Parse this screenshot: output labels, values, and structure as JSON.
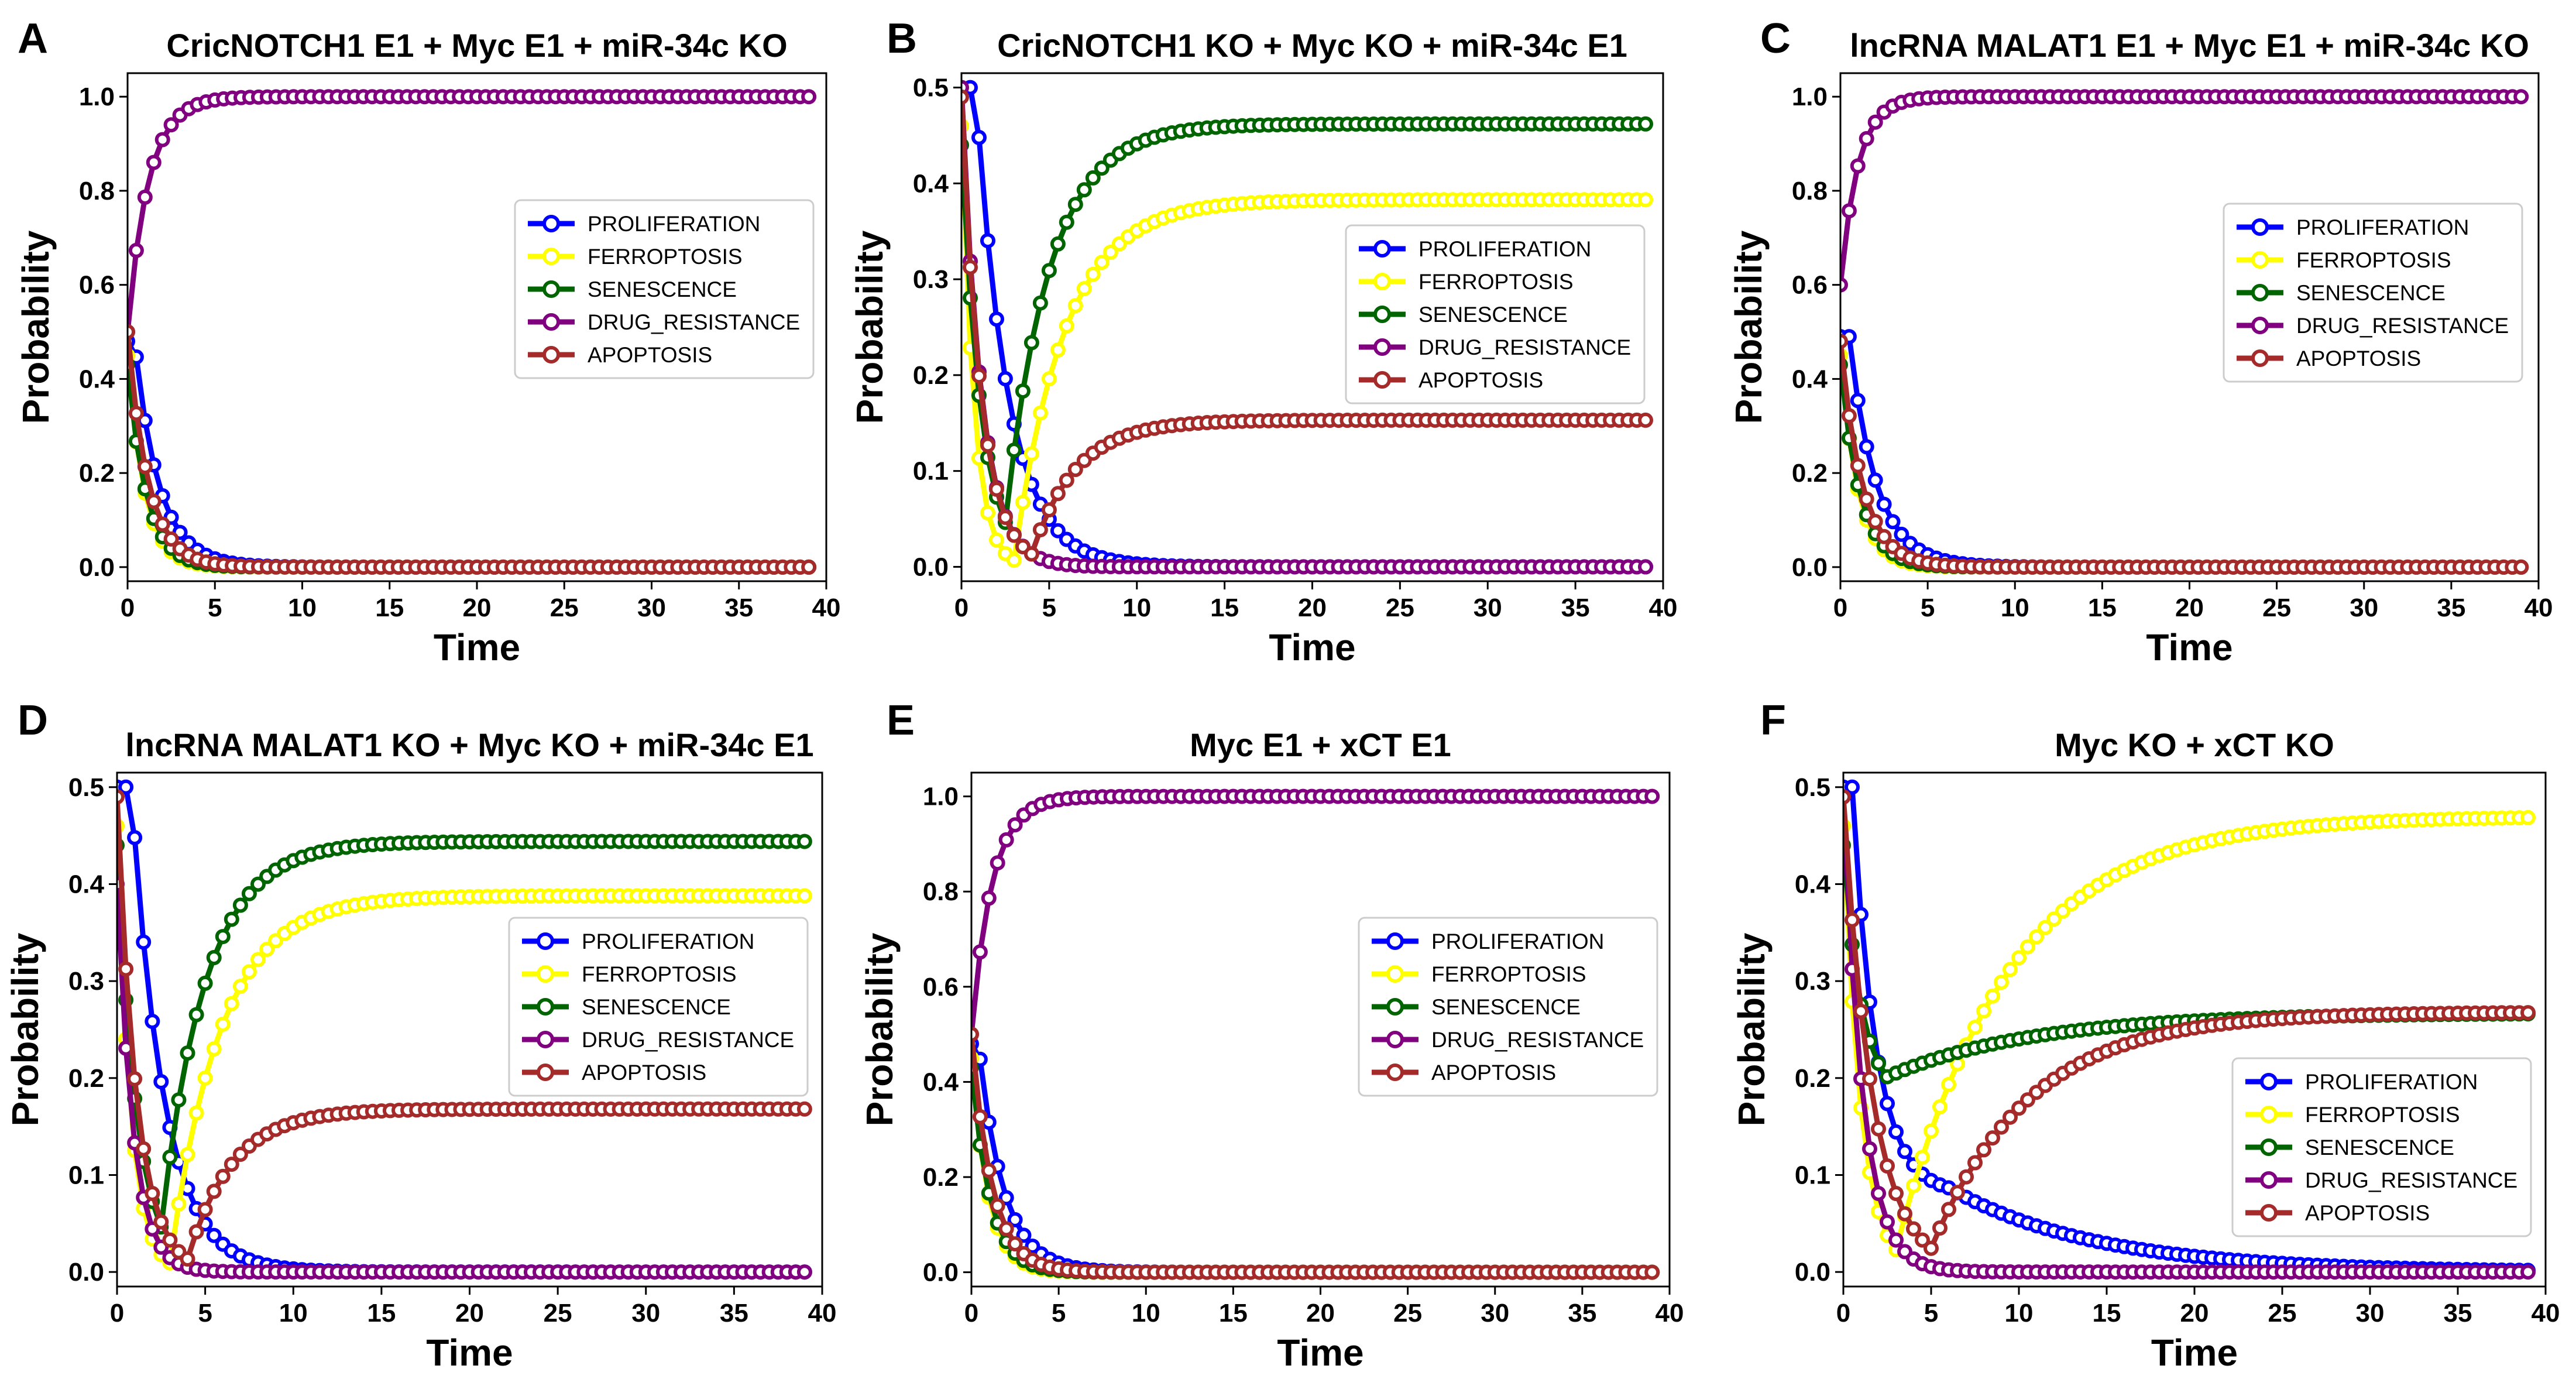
{
  "figure": {
    "x_values": "0..39 step 0.5"
  },
  "chart_data": [
    {
      "panel": "A",
      "type": "line",
      "title": "CricNOTCH1 E1 + Myc E1 + miR-34c KO",
      "xlabel": "Time",
      "ylabel": "Probability",
      "xlim": [
        0,
        40
      ],
      "ylim": [
        -0.03,
        1.05
      ],
      "xticks": [
        "0",
        "5",
        "10",
        "15",
        "20",
        "25",
        "30",
        "35",
        "40"
      ],
      "yticks": [
        "0.0",
        "0.2",
        "0.4",
        "0.6",
        "0.8",
        "1.0"
      ],
      "legend_position": "center-right",
      "series": [
        {
          "name": "PROLIFERATION",
          "color": "#0000ff",
          "start": 0.48,
          "phases": [
            {
              "to": 0.0,
              "rate": 0.72,
              "delay": 0.4
            }
          ]
        },
        {
          "name": "FERROPTOSIS",
          "color": "#ffff00",
          "start": 0.45,
          "phases": [
            {
              "to": 0.0,
              "rate": 1.05
            }
          ]
        },
        {
          "name": "SENESCENCE",
          "color": "#006400",
          "start": 0.43,
          "phases": [
            {
              "to": 0.0,
              "rate": 0.95
            }
          ]
        },
        {
          "name": "DRUG_RESISTANCE",
          "color": "#800080",
          "start": 0.5,
          "phases": [
            {
              "to": 1.0,
              "rate": 0.85
            }
          ]
        },
        {
          "name": "APOPTOSIS",
          "color": "#a52a2a",
          "start": 0.5,
          "phases": [
            {
              "to": 0.0,
              "rate": 0.85
            }
          ]
        }
      ]
    },
    {
      "panel": "B",
      "type": "line",
      "title": "CricNOTCH1 KO + Myc KO +  miR-34c E1",
      "xlabel": "Time",
      "ylabel": "Probability",
      "xlim": [
        0,
        40
      ],
      "ylim": [
        -0.015,
        0.515
      ],
      "xticks": [
        "0",
        "5",
        "10",
        "15",
        "20",
        "25",
        "30",
        "35",
        "40"
      ],
      "yticks": [
        "0.0",
        "0.1",
        "0.2",
        "0.3",
        "0.4",
        "0.5"
      ],
      "legend_position": "center-right",
      "series": [
        {
          "name": "PROLIFERATION",
          "color": "#0000ff",
          "start": 0.5,
          "phases": [
            {
              "to": 0.0,
              "rate": 0.55,
              "delay": 0.8
            }
          ]
        },
        {
          "name": "FERROPTOSIS",
          "color": "#ffff00",
          "start": 0.46,
          "phases": [
            {
              "to": 0.0,
              "rate": 1.4,
              "until": 3
            },
            {
              "to": 0.383,
              "rate": 0.35
            }
          ]
        },
        {
          "name": "SENESCENCE",
          "color": "#006400",
          "start": 0.44,
          "phases": [
            {
              "to": 0.0,
              "rate": 0.9,
              "until": 2.5
            },
            {
              "to": 0.462,
              "rate": 0.4
            }
          ]
        },
        {
          "name": "DRUG_RESISTANCE",
          "color": "#800080",
          "start": 0.5,
          "phases": [
            {
              "to": 0.0,
              "rate": 0.9
            }
          ]
        },
        {
          "name": "APOPTOSIS",
          "color": "#a52a2a",
          "start": 0.49,
          "phases": [
            {
              "to": 0.0,
              "rate": 0.9,
              "until": 4
            },
            {
              "to": 0.153,
              "rate": 0.4
            }
          ]
        }
      ]
    },
    {
      "panel": "C",
      "type": "line",
      "title": "lncRNA MALAT1 E1 + Myc E1 + miR-34c KO",
      "xlabel": "Time",
      "ylabel": "Probability",
      "xlim": [
        0,
        40
      ],
      "ylim": [
        -0.03,
        1.05
      ],
      "xticks": [
        "0",
        "5",
        "10",
        "15",
        "20",
        "25",
        "30",
        "35",
        "40"
      ],
      "yticks": [
        "0.0",
        "0.2",
        "0.4",
        "0.6",
        "0.8",
        "1.0"
      ],
      "legend_position": "center-right",
      "series": [
        {
          "name": "PROLIFERATION",
          "color": "#0000ff",
          "start": 0.49,
          "phases": [
            {
              "to": 0.0,
              "rate": 0.65,
              "delay": 0.5
            }
          ]
        },
        {
          "name": "FERROPTOSIS",
          "color": "#ffff00",
          "start": 0.45,
          "phases": [
            {
              "to": 0.0,
              "rate": 1.0
            }
          ]
        },
        {
          "name": "SENESCENCE",
          "color": "#006400",
          "start": 0.43,
          "phases": [
            {
              "to": 0.0,
              "rate": 0.9
            }
          ]
        },
        {
          "name": "DRUG_RESISTANCE",
          "color": "#800080",
          "start": 0.6,
          "phases": [
            {
              "to": 1.0,
              "rate": 1.0
            }
          ]
        },
        {
          "name": "APOPTOSIS",
          "color": "#a52a2a",
          "start": 0.48,
          "phases": [
            {
              "to": 0.0,
              "rate": 0.8
            }
          ]
        }
      ]
    },
    {
      "panel": "D",
      "type": "line",
      "title": "lncRNA MALAT1 KO + Myc KO + miR-34c E1",
      "xlabel": "Time",
      "ylabel": "Probability",
      "xlim": [
        0,
        40
      ],
      "ylim": [
        -0.015,
        0.515
      ],
      "xticks": [
        "0",
        "5",
        "10",
        "15",
        "20",
        "25",
        "30",
        "35",
        "40"
      ],
      "yticks": [
        "0.0",
        "0.1",
        "0.2",
        "0.3",
        "0.4",
        "0.5"
      ],
      "legend_position": "center-right",
      "series": [
        {
          "name": "PROLIFERATION",
          "color": "#0000ff",
          "start": 0.5,
          "phases": [
            {
              "to": 0.0,
              "rate": 0.55,
              "delay": 0.8
            }
          ]
        },
        {
          "name": "FERROPTOSIS",
          "color": "#ffff00",
          "start": 0.46,
          "phases": [
            {
              "to": 0.0,
              "rate": 1.3,
              "until": 3
            },
            {
              "to": 0.388,
              "rate": 0.35
            }
          ]
        },
        {
          "name": "SENESCENCE",
          "color": "#006400",
          "start": 0.44,
          "phases": [
            {
              "to": 0.0,
              "rate": 0.9,
              "until": 2.5
            },
            {
              "to": 0.444,
              "rate": 0.4
            }
          ]
        },
        {
          "name": "DRUG_RESISTANCE",
          "color": "#800080",
          "start": 0.4,
          "phases": [
            {
              "to": 0.0,
              "rate": 1.1
            }
          ]
        },
        {
          "name": "APOPTOSIS",
          "color": "#a52a2a",
          "start": 0.49,
          "phases": [
            {
              "to": 0.0,
              "rate": 0.9,
              "until": 4
            },
            {
              "to": 0.168,
              "rate": 0.4
            }
          ]
        }
      ]
    },
    {
      "panel": "E",
      "type": "line",
      "title": "Myc E1 + xCT E1",
      "xlabel": "Time",
      "ylabel": "Probability",
      "xlim": [
        0,
        40
      ],
      "ylim": [
        -0.03,
        1.05
      ],
      "xticks": [
        "0",
        "5",
        "10",
        "15",
        "20",
        "25",
        "30",
        "35",
        "40"
      ],
      "yticks": [
        "0.0",
        "0.2",
        "0.4",
        "0.6",
        "0.8",
        "1.0"
      ],
      "legend_position": "center-right",
      "series": [
        {
          "name": "PROLIFERATION",
          "color": "#0000ff",
          "start": 0.48,
          "phases": [
            {
              "to": 0.0,
              "rate": 0.7,
              "delay": 0.4
            }
          ]
        },
        {
          "name": "FERROPTOSIS",
          "color": "#ffff00",
          "start": 0.45,
          "phases": [
            {
              "to": 0.0,
              "rate": 1.05
            }
          ]
        },
        {
          "name": "SENESCENCE",
          "color": "#006400",
          "start": 0.43,
          "phases": [
            {
              "to": 0.0,
              "rate": 0.95
            }
          ]
        },
        {
          "name": "DRUG_RESISTANCE",
          "color": "#800080",
          "start": 0.5,
          "phases": [
            {
              "to": 1.0,
              "rate": 0.85
            }
          ]
        },
        {
          "name": "APOPTOSIS",
          "color": "#a52a2a",
          "start": 0.5,
          "phases": [
            {
              "to": 0.0,
              "rate": 0.85
            }
          ]
        }
      ]
    },
    {
      "panel": "F",
      "type": "line",
      "title": "Myc KO + xCT KO",
      "xlabel": "Time",
      "ylabel": "Probability",
      "xlim": [
        0,
        40
      ],
      "ylim": [
        -0.015,
        0.515
      ],
      "xticks": [
        "0",
        "5",
        "10",
        "15",
        "20",
        "25",
        "30",
        "35",
        "40"
      ],
      "yticks": [
        "0.0",
        "0.1",
        "0.2",
        "0.3",
        "0.4",
        "0.5"
      ],
      "legend_position": "lower-right",
      "series": [
        {
          "name": "PROLIFERATION",
          "color": "#0000ff",
          "start": 0.5,
          "phases": [
            {
              "to": 0.08,
              "rate": 0.75,
              "delay": 0.5,
              "until": 6
            },
            {
              "to": 0.0,
              "rate": 0.12
            }
          ]
        },
        {
          "name": "FERROPTOSIS",
          "color": "#ffff00",
          "start": 0.46,
          "phases": [
            {
              "to": 0.0,
              "rate": 1.0,
              "until": 3
            },
            {
              "to": 0.47,
              "rate": 0.16
            }
          ]
        },
        {
          "name": "SENESCENCE",
          "color": "#006400",
          "start": 0.44,
          "phases": [
            {
              "to": 0.18,
              "rate": 1.0,
              "until": 2.5
            },
            {
              "to": 0.267,
              "rate": 0.12
            }
          ]
        },
        {
          "name": "DRUG_RESISTANCE",
          "color": "#800080",
          "start": 0.49,
          "phases": [
            {
              "to": 0.0,
              "rate": 0.9
            }
          ]
        },
        {
          "name": "APOPTOSIS",
          "color": "#a52a2a",
          "start": 0.49,
          "phases": [
            {
              "to": 0.0,
              "rate": 0.6,
              "until": 5
            },
            {
              "to": 0.268,
              "rate": 0.18
            }
          ]
        }
      ]
    }
  ]
}
